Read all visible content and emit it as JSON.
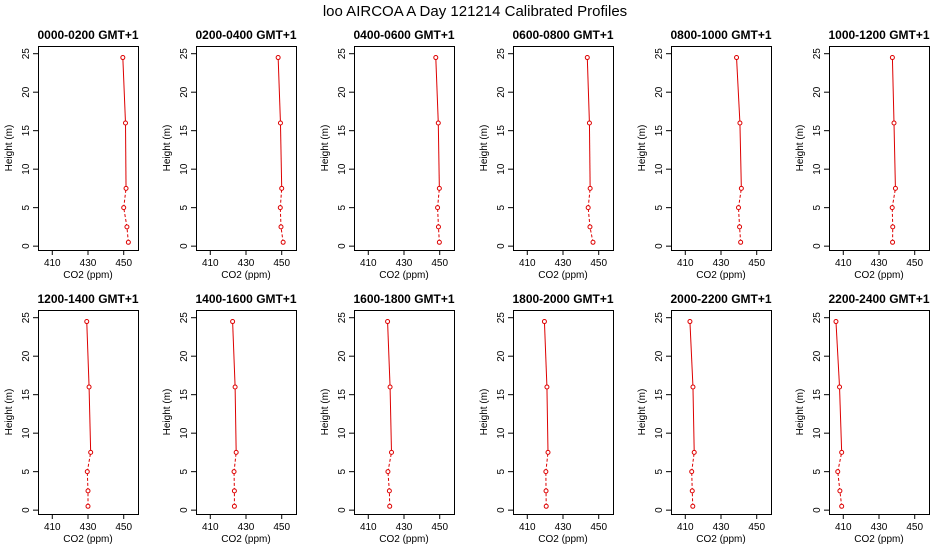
{
  "title": "loo AIRCOA A  Day 121214  Calibrated Profiles",
  "colors": {
    "profile": "#dd0000",
    "axis": "#000000",
    "background": "#ffffff"
  },
  "chart_data": [
    {
      "type": "line",
      "title": "0000-0200 GMT+1",
      "xlabel": "CO2 (ppm)",
      "ylabel": "Height (m)",
      "xlim": [
        402,
        458
      ],
      "ylim": [
        -0.5,
        26
      ],
      "xticks": [
        410,
        430,
        450
      ],
      "yticks": [
        0,
        5,
        10,
        15,
        20,
        25
      ],
      "x": [
        452.6,
        451.8,
        450.0,
        451.3,
        451.0,
        449.5
      ],
      "y": [
        0.5,
        2.5,
        5,
        7.5,
        16,
        24.5
      ]
    },
    {
      "type": "line",
      "title": "0200-0400 GMT+1",
      "xlabel": "CO2 (ppm)",
      "ylabel": "Height (m)",
      "xlim": [
        402,
        458
      ],
      "ylim": [
        -0.5,
        26
      ],
      "xticks": [
        410,
        430,
        450
      ],
      "yticks": [
        0,
        5,
        10,
        15,
        20,
        25
      ],
      "x": [
        450.8,
        449.6,
        449.2,
        450.0,
        449.3,
        448.0
      ],
      "y": [
        0.5,
        2.5,
        5,
        7.5,
        16,
        24.5
      ]
    },
    {
      "type": "line",
      "title": "0400-0600 GMT+1",
      "xlabel": "CO2 (ppm)",
      "ylabel": "Height (m)",
      "xlim": [
        402,
        458
      ],
      "ylim": [
        -0.5,
        26
      ],
      "xticks": [
        410,
        430,
        450
      ],
      "yticks": [
        0,
        5,
        10,
        15,
        20,
        25
      ],
      "x": [
        449.8,
        449.3,
        448.8,
        449.8,
        449.2,
        447.8
      ],
      "y": [
        0.5,
        2.5,
        5,
        7.5,
        16,
        24.5
      ]
    },
    {
      "type": "line",
      "title": "0600-0800 GMT+1",
      "xlabel": "CO2 (ppm)",
      "ylabel": "Height (m)",
      "xlim": [
        402,
        458
      ],
      "ylim": [
        -0.5,
        26
      ],
      "xticks": [
        410,
        430,
        450
      ],
      "yticks": [
        0,
        5,
        10,
        15,
        20,
        25
      ],
      "x": [
        446.8,
        445.1,
        444.1,
        445.2,
        444.8,
        443.6
      ],
      "y": [
        0.5,
        2.5,
        5,
        7.5,
        16,
        24.5
      ]
    },
    {
      "type": "line",
      "title": "0800-1000 GMT+1",
      "xlabel": "CO2 (ppm)",
      "ylabel": "Height (m)",
      "xlim": [
        402,
        458
      ],
      "ylim": [
        -0.5,
        26
      ],
      "xticks": [
        410,
        430,
        450
      ],
      "yticks": [
        0,
        5,
        10,
        15,
        20,
        25
      ],
      "x": [
        441.0,
        440.4,
        439.8,
        441.4,
        440.6,
        438.7
      ],
      "y": [
        0.5,
        2.5,
        5,
        7.5,
        16,
        24.5
      ]
    },
    {
      "type": "line",
      "title": "1000-1200 GMT+1",
      "xlabel": "CO2 (ppm)",
      "ylabel": "Height (m)",
      "xlim": [
        402,
        458
      ],
      "ylim": [
        -0.5,
        26
      ],
      "xticks": [
        410,
        430,
        450
      ],
      "yticks": [
        0,
        5,
        10,
        15,
        20,
        25
      ],
      "x": [
        437.6,
        437.7,
        437.4,
        439.2,
        438.4,
        437.5
      ],
      "y": [
        0.5,
        2.5,
        5,
        7.5,
        16,
        24.5
      ]
    },
    {
      "type": "line",
      "title": "1200-1400 GMT+1",
      "xlabel": "CO2 (ppm)",
      "ylabel": "Height (m)",
      "xlim": [
        402,
        458
      ],
      "ylim": [
        -0.5,
        26
      ],
      "xticks": [
        410,
        430,
        450
      ],
      "yticks": [
        0,
        5,
        10,
        15,
        20,
        25
      ],
      "x": [
        430.0,
        430.0,
        429.6,
        431.5,
        430.6,
        429.3
      ],
      "y": [
        0.5,
        2.5,
        5,
        7.5,
        16,
        24.5
      ]
    },
    {
      "type": "line",
      "title": "1400-1600 GMT+1",
      "xlabel": "CO2 (ppm)",
      "ylabel": "Height (m)",
      "xlim": [
        402,
        458
      ],
      "ylim": [
        -0.5,
        26
      ],
      "xticks": [
        410,
        430,
        450
      ],
      "yticks": [
        0,
        5,
        10,
        15,
        20,
        25
      ],
      "x": [
        423.5,
        423.5,
        423.3,
        424.5,
        423.9,
        422.5
      ],
      "y": [
        0.5,
        2.5,
        5,
        7.5,
        16,
        24.5
      ]
    },
    {
      "type": "line",
      "title": "1600-1800 GMT+1",
      "xlabel": "CO2 (ppm)",
      "ylabel": "Height (m)",
      "xlim": [
        402,
        458
      ],
      "ylim": [
        -0.5,
        26
      ],
      "xticks": [
        410,
        430,
        450
      ],
      "yticks": [
        0,
        5,
        10,
        15,
        20,
        25
      ],
      "x": [
        422.0,
        421.8,
        421.0,
        423.0,
        422.2,
        420.8
      ],
      "y": [
        0.5,
        2.5,
        5,
        7.5,
        16,
        24.5
      ]
    },
    {
      "type": "line",
      "title": "1800-2000 GMT+1",
      "xlabel": "CO2 (ppm)",
      "ylabel": "Height (m)",
      "xlim": [
        402,
        458
      ],
      "ylim": [
        -0.5,
        26
      ],
      "xticks": [
        410,
        430,
        450
      ],
      "yticks": [
        0,
        5,
        10,
        15,
        20,
        25
      ],
      "x": [
        420.6,
        420.5,
        420.4,
        421.6,
        421.0,
        419.6
      ],
      "y": [
        0.5,
        2.5,
        5,
        7.5,
        16,
        24.5
      ]
    },
    {
      "type": "line",
      "title": "2000-2200 GMT+1",
      "xlabel": "CO2 (ppm)",
      "ylabel": "Height (m)",
      "xlim": [
        402,
        458
      ],
      "ylim": [
        -0.5,
        26
      ],
      "xticks": [
        410,
        430,
        450
      ],
      "yticks": [
        0,
        5,
        10,
        15,
        20,
        25
      ],
      "x": [
        414.2,
        413.9,
        413.6,
        415.0,
        414.3,
        412.6
      ],
      "y": [
        0.5,
        2.5,
        5,
        7.5,
        16,
        24.5
      ]
    },
    {
      "type": "line",
      "title": "2200-2400 GMT+1",
      "xlabel": "CO2 (ppm)",
      "ylabel": "Height (m)",
      "xlim": [
        402,
        458
      ],
      "ylim": [
        -0.5,
        26
      ],
      "xticks": [
        410,
        430,
        450
      ],
      "yticks": [
        0,
        5,
        10,
        15,
        20,
        25
      ],
      "x": [
        409.1,
        408.1,
        406.9,
        409.1,
        407.9,
        405.9
      ],
      "y": [
        0.5,
        2.5,
        5,
        7.5,
        16,
        24.5
      ]
    }
  ]
}
